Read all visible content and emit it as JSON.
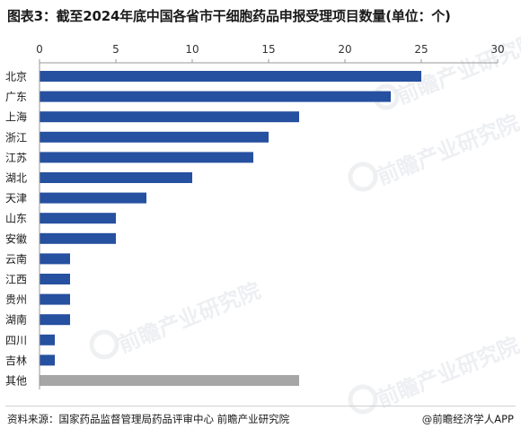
{
  "title": "图表3：截至2024年底中国各省市干细胞药品申报受理项目数量(单位：个)",
  "source": "资料来源：国家药品监督管理局药品评审中心 前瞻产业研究院",
  "credit": "@前瞻经济学人APP",
  "watermark": "前瞻产业研究院",
  "colors": {
    "bar": "#2650a0",
    "bar_other": "#a6a6a6",
    "axis": "#9a9a9a"
  },
  "chart_data": {
    "type": "bar",
    "orientation": "horizontal",
    "xlim": [
      0,
      30
    ],
    "xticks": [
      0,
      5,
      10,
      15,
      20,
      25,
      30
    ],
    "x_axis_position": "top",
    "grid": false,
    "legend": "none",
    "categories": [
      "北京",
      "广东",
      "上海",
      "浙江",
      "江苏",
      "湖北",
      "天津",
      "山东",
      "安徽",
      "云南",
      "江西",
      "贵州",
      "湖南",
      "四川",
      "吉林",
      "其他"
    ],
    "values": [
      25,
      23,
      17,
      15,
      14,
      10,
      7,
      5,
      5,
      2,
      2,
      2,
      2,
      1,
      1,
      17
    ],
    "highlight": {
      "category": "其他",
      "color": "#a6a6a6"
    }
  }
}
